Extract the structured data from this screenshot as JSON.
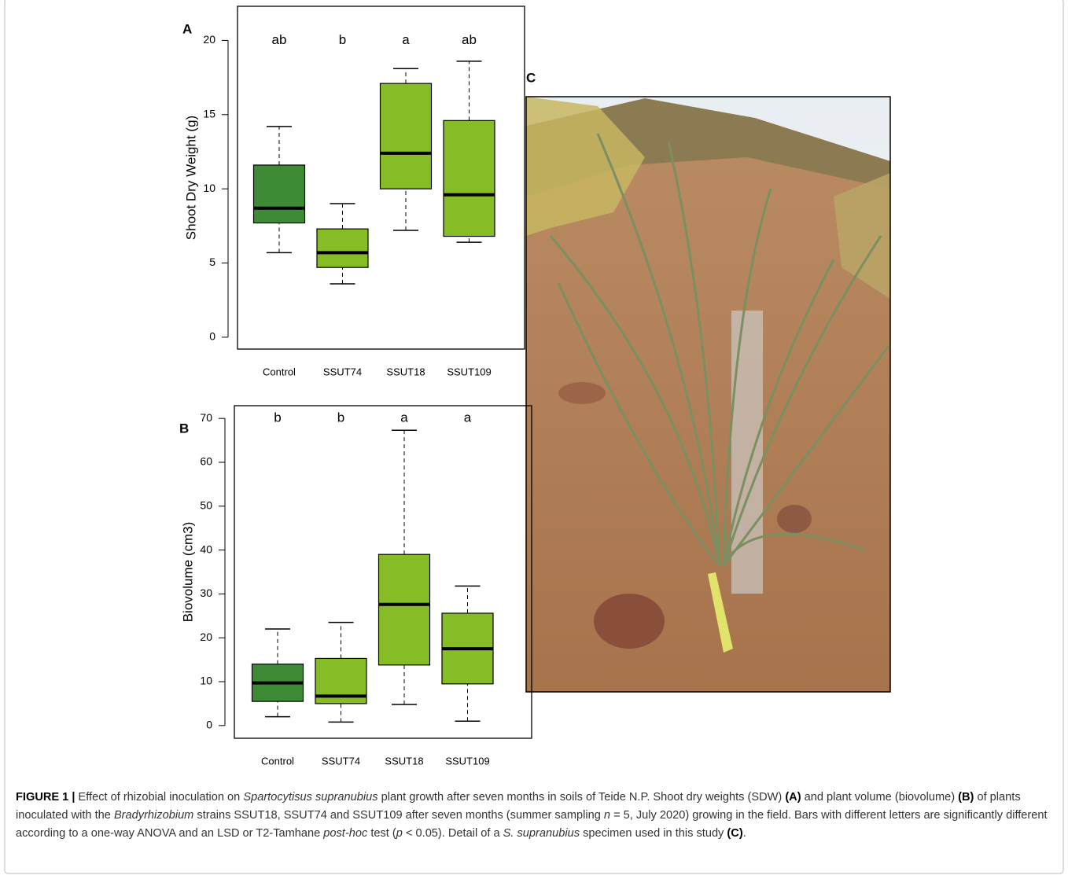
{
  "chart_data": [
    {
      "type": "box",
      "panel_label": "A",
      "ylabel": "Shoot Dry Weight (g)",
      "categories": [
        "Control",
        "SSUT74",
        "SSUT18",
        "SSUT109"
      ],
      "letters": [
        "ab",
        "b",
        "a",
        "ab"
      ],
      "colors": [
        "#3e8a35",
        "#86bd26",
        "#86bd26",
        "#86bd26"
      ],
      "values": [
        {
          "min": 5.7,
          "q1": 7.7,
          "median": 8.7,
          "q3": 11.6,
          "max": 14.2
        },
        {
          "min": 3.6,
          "q1": 4.7,
          "median": 5.7,
          "q3": 7.3,
          "max": 9.0
        },
        {
          "min": 7.2,
          "q1": 10.0,
          "median": 12.4,
          "q3": 17.1,
          "max": 18.1
        },
        {
          "min": 6.4,
          "q1": 6.8,
          "median": 9.6,
          "q3": 14.6,
          "max": 18.6
        }
      ],
      "ylim": [
        -0.8,
        22.3
      ],
      "yticks": [
        0,
        5,
        10,
        15,
        20
      ]
    },
    {
      "type": "box",
      "panel_label": "B",
      "ylabel": "Biovolume (cm3)",
      "categories": [
        "Control",
        "SSUT74",
        "SSUT18",
        "SSUT109"
      ],
      "letters": [
        "b",
        "b",
        "a",
        "a"
      ],
      "colors": [
        "#3e8a35",
        "#86bd26",
        "#86bd26",
        "#86bd26"
      ],
      "values": [
        {
          "min": 2.0,
          "q1": 5.5,
          "median": 9.7,
          "q3": 14.0,
          "max": 22.0
        },
        {
          "min": 0.8,
          "q1": 5.0,
          "median": 6.7,
          "q3": 15.3,
          "max": 23.5
        },
        {
          "min": 4.8,
          "q1": 13.8,
          "median": 27.6,
          "q3": 39.0,
          "max": 67.3
        },
        {
          "min": 1.0,
          "q1": 9.5,
          "median": 17.5,
          "q3": 25.6,
          "max": 31.8
        }
      ],
      "ylim": [
        -2.9,
        72.9
      ],
      "yticks": [
        0,
        10,
        20,
        30,
        40,
        50,
        60,
        70
      ]
    }
  ],
  "photo": {
    "panel_label": "C"
  },
  "caption": [
    "FIGURE 1 | ",
    "Effect of rhizobial inoculation on ",
    "Spartocytisus supranubius",
    " plant growth after seven months in soils of Teide N.P. Shoot dry weights (SDW) ",
    "(A)",
    " and plant volume (biovolume) ",
    "(B)",
    " of plants inoculated with the ",
    "Bradyrhizobium",
    " strains SSUT18, SSUT74 and SSUT109 after seven months (summer sampling ",
    "n",
    " = 5, July 2020) growing in the field. Bars with different letters are significantly different according to a one-way ANOVA and an LSD or T2-Tamhane ",
    "post-hoc",
    " test (",
    "p",
    " < 0.05). Detail of a ",
    "S. supranubius",
    " specimen used in this study ",
    "(C)",
    "."
  ]
}
